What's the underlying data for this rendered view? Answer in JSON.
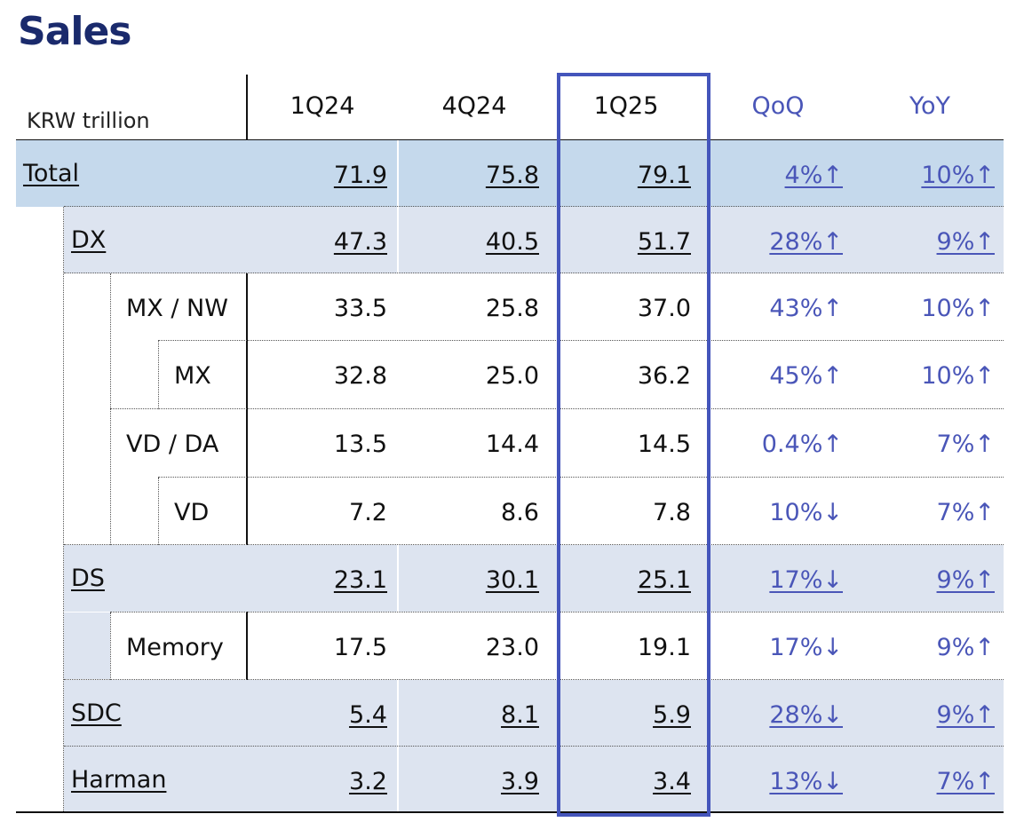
{
  "title": "Sales",
  "unit_label": "KRW trillion",
  "headers": [
    "1Q24",
    "4Q24",
    "1Q25",
    "QoQ",
    "YoY"
  ],
  "rows": [
    {
      "label": "Total",
      "values": [
        "71.9",
        "75.8",
        "79.1",
        "4%↑",
        "10%↑"
      ]
    },
    {
      "label": "DX",
      "values": [
        "47.3",
        "40.5",
        "51.7",
        "28%↑",
        "9%↑"
      ]
    },
    {
      "label": "MX / NW",
      "values": [
        "33.5",
        "25.8",
        "37.0",
        "43%↑",
        "10%↑"
      ]
    },
    {
      "label": "MX",
      "values": [
        "32.8",
        "25.0",
        "36.2",
        "45%↑",
        "10%↑"
      ]
    },
    {
      "label": "VD / DA",
      "values": [
        "13.5",
        "14.4",
        "14.5",
        "0.4%↑",
        "7%↑"
      ]
    },
    {
      "label": "VD",
      "values": [
        "7.2",
        "8.6",
        "7.8",
        "10%↓",
        "7%↑"
      ]
    },
    {
      "label": "DS",
      "values": [
        "23.1",
        "30.1",
        "25.1",
        "17%↓",
        "9%↑"
      ]
    },
    {
      "label": "Memory",
      "values": [
        "17.5",
        "23.0",
        "19.1",
        "17%↓",
        "9%↑"
      ]
    },
    {
      "label": "SDC",
      "values": [
        "5.4",
        "8.1",
        "5.9",
        "28%↓",
        "9%↑"
      ]
    },
    {
      "label": "Harman",
      "values": [
        "3.2",
        "3.9",
        "3.4",
        "13%↓",
        "7%↑"
      ]
    }
  ],
  "colors": {
    "title": "#1a2a6c",
    "accent_blue": "#4a56b8",
    "total_bg": "#c5d9ec",
    "segment_bg": "#dde4f0",
    "highlight_border": "#4455bb"
  }
}
